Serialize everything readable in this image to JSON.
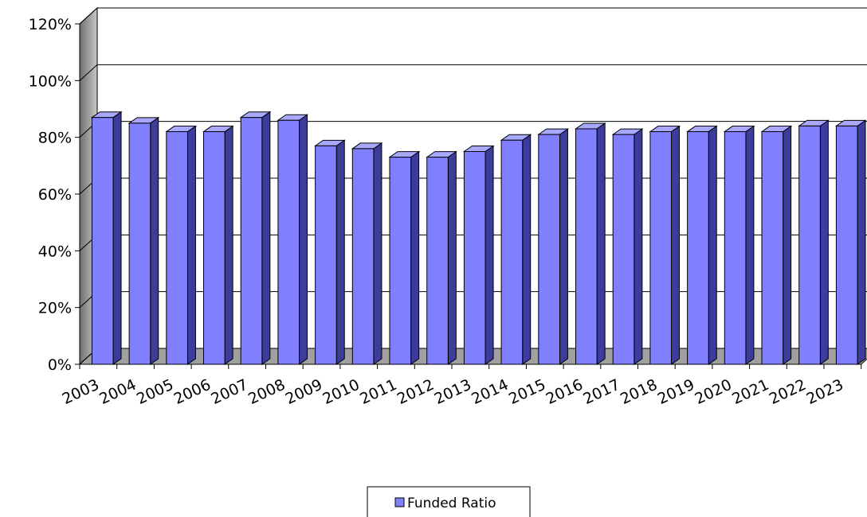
{
  "chart_data": {
    "type": "bar3d",
    "categories": [
      "2003",
      "2004",
      "2005",
      "2006",
      "2007",
      "2008",
      "2009",
      "2010",
      "2011",
      "2012",
      "2013",
      "2014",
      "2015",
      "2016",
      "2017",
      "2018",
      "2019",
      "2020",
      "2021",
      "2022",
      "2023"
    ],
    "series": [
      {
        "name": "Funded Ratio",
        "color": "#8080ff",
        "values": [
          87,
          85,
          82,
          82,
          87,
          86,
          77,
          76,
          73,
          73,
          75,
          79,
          81,
          83,
          81,
          82,
          82,
          82,
          82,
          84,
          84
        ]
      }
    ],
    "ylim": [
      0,
      120
    ],
    "yticks": [
      {
        "value": 0,
        "label": "0%"
      },
      {
        "value": 20,
        "label": "20%"
      },
      {
        "value": 40,
        "label": "40%"
      },
      {
        "value": 60,
        "label": "60%"
      },
      {
        "value": 80,
        "label": "80%"
      },
      {
        "value": 100,
        "label": "100%"
      },
      {
        "value": 120,
        "label": "120%"
      }
    ],
    "grid": true,
    "legend": "bottom"
  }
}
